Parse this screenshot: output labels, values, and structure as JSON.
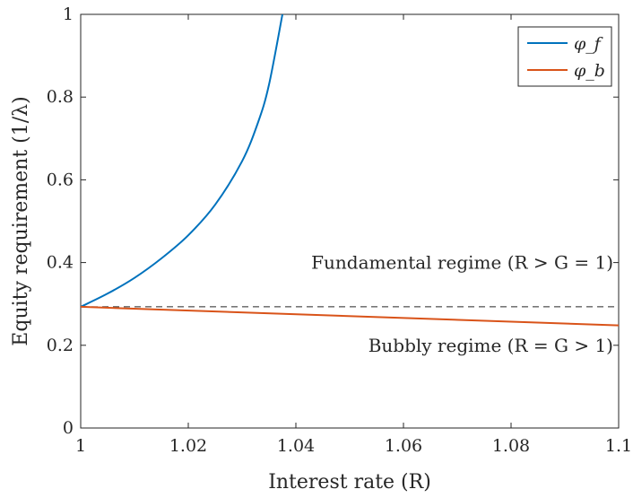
{
  "chart_data": {
    "type": "line",
    "xlabel": "Interest rate (R)",
    "ylabel": "Equity requirement (1/λ)",
    "xlim": [
      1,
      1.1
    ],
    "ylim": [
      0,
      1
    ],
    "x_ticks": [
      1,
      1.02,
      1.04,
      1.06,
      1.08,
      1.1
    ],
    "x_tick_labels": [
      "1",
      "1.02",
      "1.04",
      "1.06",
      "1.08",
      "1.1"
    ],
    "y_ticks": [
      0,
      0.2,
      0.4,
      0.6,
      0.8,
      1
    ],
    "y_tick_labels": [
      "0",
      "0.2",
      "0.4",
      "0.6",
      "0.8",
      "1"
    ],
    "grid": false,
    "legend_position": "top-right",
    "series": [
      {
        "name": "φ_f",
        "color": "#0072BD",
        "x": [
          1.0,
          1.005,
          1.01,
          1.015,
          1.02,
          1.025,
          1.03,
          1.033,
          1.035,
          1.0375
        ],
        "y": [
          0.293,
          0.325,
          0.363,
          0.41,
          0.466,
          0.54,
          0.645,
          0.74,
          0.83,
          1.0
        ]
      },
      {
        "name": "φ_b",
        "color": "#D95319",
        "x": [
          1.0,
          1.1
        ],
        "y": [
          0.293,
          0.248
        ]
      }
    ],
    "reference_line": {
      "y": 0.293,
      "style": "dashed",
      "color": "#262626"
    },
    "annotations": [
      {
        "text": "Fundamental regime (R > G = 1)",
        "x": 1.1,
        "y": 0.4
      },
      {
        "text": "Bubbly regime (R = G > 1)",
        "x": 1.1,
        "y": 0.2
      }
    ]
  }
}
